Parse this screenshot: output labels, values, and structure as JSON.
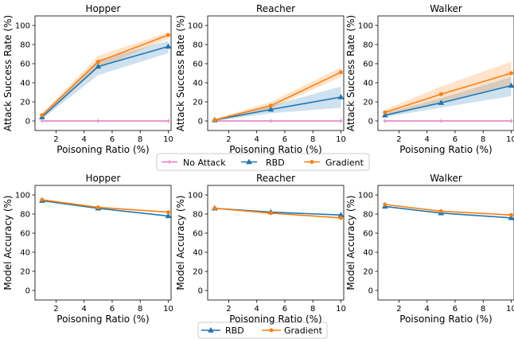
{
  "legend_top": [
    {
      "label": "No Attack",
      "color": "#e377c2"
    },
    {
      "label": "RBD",
      "color": "#1f77b4"
    },
    {
      "label": "Gradient",
      "color": "#ff7f0e"
    }
  ],
  "legend_bottom": [
    {
      "label": "RBD",
      "color": "#1f77b4"
    },
    {
      "label": "Gradient",
      "color": "#ff7f0e"
    }
  ],
  "colors": {
    "no_attack": "#e377c2",
    "rbd": "#1f77b4",
    "gradient": "#ff7f0e"
  },
  "chart_data": [
    {
      "type": "line",
      "title": "Hopper",
      "xlabel": "Poisoning Ratio (%)",
      "ylabel": "Attack Success Rate (%)",
      "x": [
        1,
        5,
        10
      ],
      "xlim": [
        0.5,
        10.2
      ],
      "ylim": [
        -10,
        110
      ],
      "xticks": [
        2,
        4,
        6,
        8,
        10
      ],
      "yticks": [
        0,
        20,
        40,
        60,
        80,
        100
      ],
      "series": [
        {
          "name": "No Attack",
          "values": [
            0,
            0,
            0
          ],
          "band": null
        },
        {
          "name": "RBD",
          "values": [
            4,
            57,
            78
          ],
          "band": [
            [
              2,
              6
            ],
            [
              48,
              64
            ],
            [
              71,
              84
            ]
          ]
        },
        {
          "name": "Gradient",
          "values": [
            6,
            62,
            90
          ],
          "band": [
            [
              4,
              8
            ],
            [
              55,
              68
            ],
            [
              86,
              93
            ]
          ]
        }
      ]
    },
    {
      "type": "line",
      "title": "Reacher",
      "xlabel": "Poisoning Ratio (%)",
      "ylabel": "Attack Success Rate (%)",
      "x": [
        1,
        5,
        10
      ],
      "xlim": [
        0.5,
        10.2
      ],
      "ylim": [
        -10,
        110
      ],
      "xticks": [
        2,
        4,
        6,
        8,
        10
      ],
      "yticks": [
        0,
        20,
        40,
        60,
        80,
        100
      ],
      "series": [
        {
          "name": "No Attack",
          "values": [
            0,
            0,
            0
          ],
          "band": null
        },
        {
          "name": "RBD",
          "values": [
            1,
            12,
            25
          ],
          "band": [
            [
              0,
              2
            ],
            [
              8,
              16
            ],
            [
              14,
              36
            ]
          ]
        },
        {
          "name": "Gradient",
          "values": [
            1,
            16,
            51
          ],
          "band": [
            [
              0,
              2
            ],
            [
              13,
              20
            ],
            [
              46,
              56
            ]
          ]
        }
      ]
    },
    {
      "type": "line",
      "title": "Walker",
      "xlabel": "Poisoning Ratio (%)",
      "ylabel": "Attack Success Rate (%)",
      "x": [
        1,
        5,
        10
      ],
      "xlim": [
        0.5,
        10.2
      ],
      "ylim": [
        -10,
        110
      ],
      "xticks": [
        2,
        4,
        6,
        8,
        10
      ],
      "yticks": [
        0,
        20,
        40,
        60,
        80,
        100
      ],
      "series": [
        {
          "name": "No Attack",
          "values": [
            0,
            0,
            0
          ],
          "band": null
        },
        {
          "name": "RBD",
          "values": [
            6,
            19,
            37
          ],
          "band": [
            [
              4,
              8
            ],
            [
              14,
              24
            ],
            [
              26,
              46
            ]
          ]
        },
        {
          "name": "Gradient",
          "values": [
            9,
            28,
            50
          ],
          "band": [
            [
              6,
              12
            ],
            [
              20,
              36
            ],
            [
              38,
              62
            ]
          ]
        }
      ]
    },
    {
      "type": "line",
      "title": "Hopper",
      "xlabel": "Poisoning Ratio (%)",
      "ylabel": "Model Accuracy (%)",
      "x": [
        1,
        5,
        10
      ],
      "xlim": [
        0.5,
        10.2
      ],
      "ylim": [
        -10,
        110
      ],
      "xticks": [
        2,
        4,
        6,
        8,
        10
      ],
      "yticks": [
        0,
        20,
        40,
        60,
        80,
        100
      ],
      "series": [
        {
          "name": "RBD",
          "values": [
            94,
            86,
            78
          ],
          "band": null
        },
        {
          "name": "Gradient",
          "values": [
            95,
            87,
            82
          ],
          "band": null
        }
      ]
    },
    {
      "type": "line",
      "title": "Reacher",
      "xlabel": "Poisoning Ratio (%)",
      "ylabel": "Model Accuracy (%)",
      "x": [
        1,
        5,
        10
      ],
      "xlim": [
        0.5,
        10.2
      ],
      "ylim": [
        -10,
        110
      ],
      "xticks": [
        2,
        4,
        6,
        8,
        10
      ],
      "yticks": [
        0,
        20,
        40,
        60,
        80,
        100
      ],
      "series": [
        {
          "name": "RBD",
          "values": [
            86,
            82,
            79
          ],
          "band": null
        },
        {
          "name": "Gradient",
          "values": [
            86,
            81,
            76
          ],
          "band": null
        }
      ]
    },
    {
      "type": "line",
      "title": "Walker",
      "xlabel": "Poisoning Ratio (%)",
      "ylabel": "Model Accuracy (%)",
      "x": [
        1,
        5,
        10
      ],
      "xlim": [
        0.5,
        10.2
      ],
      "ylim": [
        -10,
        110
      ],
      "xticks": [
        2,
        4,
        6,
        8,
        10
      ],
      "yticks": [
        0,
        20,
        40,
        60,
        80,
        100
      ],
      "series": [
        {
          "name": "RBD",
          "values": [
            88,
            81,
            76
          ],
          "band": null
        },
        {
          "name": "Gradient",
          "values": [
            90,
            83,
            79
          ],
          "band": null
        }
      ]
    }
  ]
}
